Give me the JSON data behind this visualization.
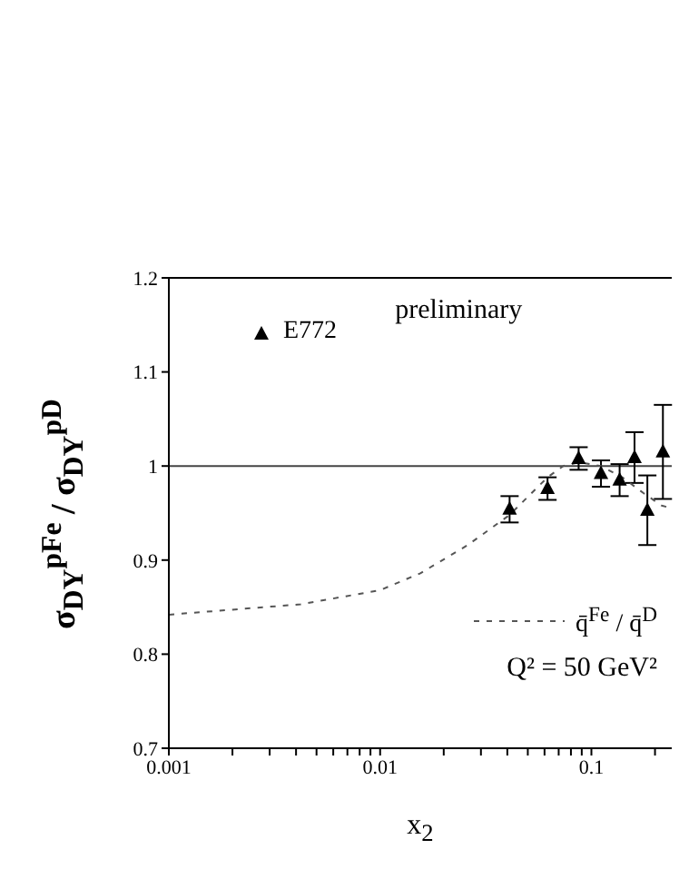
{
  "chart_data": {
    "type": "scatter",
    "xlabel": "x$_{2}$",
    "ylabel": "σ$_{DY}$$^{pFe}$ / σ$_{DY}$$^{pD}$",
    "annotations": [
      "preliminary",
      "Q² = 50 GeV²"
    ],
    "log": "x",
    "xlim": [
      0.001,
      0.24
    ],
    "ylim": [
      0.7,
      1.2
    ],
    "xticks": [
      0.001,
      {
        "value": 0.002,
        "label": null
      },
      {
        "value": 0.003,
        "label": null
      },
      {
        "value": 0.004,
        "label": null
      },
      {
        "value": 0.005,
        "label": null
      },
      {
        "value": 0.006,
        "label": null
      },
      {
        "value": 0.007,
        "label": null
      },
      {
        "value": 0.008,
        "label": null
      },
      {
        "value": 0.009,
        "label": null
      },
      0.01,
      {
        "value": 0.02,
        "label": null
      },
      {
        "value": 0.03,
        "label": null
      },
      {
        "value": 0.04,
        "label": null
      },
      {
        "value": 0.05,
        "label": null
      },
      {
        "value": 0.06,
        "label": null
      },
      {
        "value": 0.07,
        "label": null
      },
      {
        "value": 0.08,
        "label": null
      },
      {
        "value": 0.09,
        "label": null
      },
      0.1,
      {
        "value": 0.2,
        "label": null
      }
    ],
    "yticks": [
      0.7,
      0.8,
      0.9,
      1,
      1.1,
      1.2
    ],
    "ref_lines": [
      {
        "axis": "y",
        "value": 1,
        "color": "#444444"
      }
    ],
    "legend": "right",
    "grid": false,
    "series": [
      {
        "name": "E772",
        "marker": "triangle",
        "color": "#000000",
        "x": [
          0.041,
          0.062,
          0.087,
          0.111,
          0.136,
          0.16,
          0.184,
          0.218
        ],
        "values": [
          0.954,
          0.976,
          1.008,
          0.992,
          0.985,
          1.009,
          0.953,
          1.015
        ],
        "errors": [
          0.014,
          0.012,
          0.012,
          0.014,
          0.017,
          0.027,
          0.037,
          0.05
        ]
      },
      {
        "name": "q̄$^{Fe}$ / q̄$^{D}$",
        "type": "line",
        "line_style": "dashed",
        "color": "#555555",
        "x": [
          0.001,
          0.0042,
          0.01,
          0.0155,
          0.026,
          0.041,
          0.062,
          0.0736,
          0.087,
          0.111,
          0.14,
          0.177,
          0.215,
          0.24
        ],
        "values": [
          0.842,
          0.853,
          0.868,
          0.886,
          0.916,
          0.948,
          0.988,
          1.0,
          1.004,
          1.0,
          0.988,
          0.971,
          0.958,
          0.955
        ]
      }
    ]
  }
}
